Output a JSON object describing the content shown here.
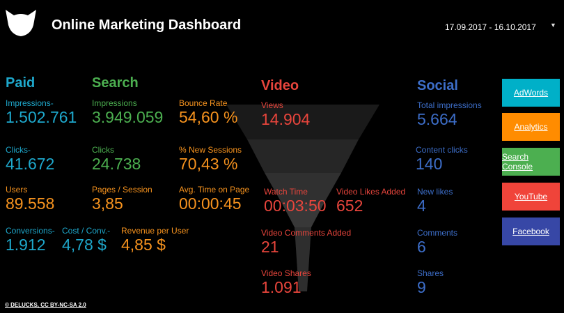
{
  "header": {
    "title": "Online Marketing Dashboard",
    "date_range": "17.09.2017 - 16.10.2017"
  },
  "paid": {
    "heading": "Paid",
    "impressions_label": "Impressions-",
    "impressions_value": "1.502.761",
    "clicks_label": "Clicks-",
    "clicks_value": "41.672",
    "users_label": "Users",
    "users_value": "89.558",
    "conversions_label": "Conversions-",
    "conversions_value": "1.912",
    "cost_conv_label": "Cost / Conv.-",
    "cost_conv_value": "4,78 $",
    "revenue_user_label": "Revenue per User",
    "revenue_user_value": "4,85 $"
  },
  "search": {
    "heading": "Search",
    "impressions_label": "Impressions",
    "impressions_value": "3.949.059",
    "clicks_label": "Clicks",
    "clicks_value": "24.738",
    "pages_session_label": "Pages / Session",
    "pages_session_value": "3,85",
    "bounce_rate_label": "Bounce Rate",
    "bounce_rate_value": "54,60 %",
    "new_sessions_label": "% New Sessions",
    "new_sessions_value": "70,43 %",
    "avg_time_label": "Avg. Time on Page",
    "avg_time_value": "00:00:45"
  },
  "video": {
    "heading": "Video",
    "views_label": "Views",
    "views_value": "14.904",
    "watch_time_label": "Watch Time",
    "watch_time_value": "00:03:50",
    "likes_label": "Video Likes Added",
    "likes_value": "652",
    "comments_label": "Video Comments Added",
    "comments_value": "21",
    "shares_label": "Video Shares",
    "shares_value": "1.091"
  },
  "social": {
    "heading": "Social",
    "total_impressions_label": "Total impressions",
    "total_impressions_value": "5.664",
    "content_clicks_label": "Content clicks",
    "content_clicks_value": "140",
    "new_likes_label": "New likes",
    "new_likes_value": "4",
    "comments_label": "Comments",
    "comments_value": "6",
    "shares_label": "Shares",
    "shares_value": "9"
  },
  "buttons": {
    "adwords": "AdWords",
    "analytics": "Analytics",
    "search_console": "Search Console",
    "youtube": "YouTube",
    "facebook": "Facebook"
  },
  "colors": {
    "adwords": "#00b0c8",
    "analytics": "#ff8c00",
    "search_console": "#4caf50",
    "youtube": "#f0443a",
    "facebook": "#3747a6"
  },
  "footer": {
    "credit": "© DELUCKS, CC BY-NC-SA 2.0"
  }
}
